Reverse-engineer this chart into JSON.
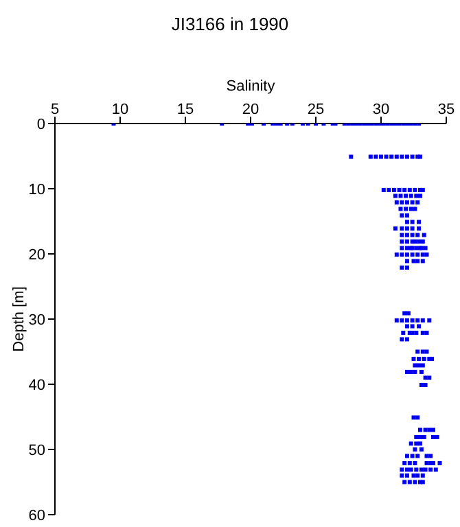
{
  "chart_data": {
    "type": "scatter",
    "title": "JI3166 in 1990",
    "xlabel": "Salinity",
    "ylabel": "Depth [m]",
    "xlim": [
      5,
      35
    ],
    "xticks": [
      5,
      10,
      15,
      20,
      25,
      30,
      35
    ],
    "ylim": [
      60,
      0
    ],
    "yticks": [
      0,
      10,
      20,
      30,
      40,
      50,
      60
    ],
    "grid": false,
    "legend": false,
    "marker": "square",
    "series": [
      {
        "color": "#0000ee",
        "x": [
          9.5,
          17.8,
          19.8,
          20.1,
          21,
          21.7,
          22,
          22.3,
          22.8,
          23.2,
          24,
          24.4,
          25,
          25.6,
          26.3,
          26.5,
          27.2,
          27.5,
          27.8,
          28.1,
          28.4,
          28.7,
          29,
          29.3,
          29.6,
          29.9,
          30.2,
          30.5,
          30.8,
          31.1,
          31.4,
          31.7,
          32,
          32.3,
          32.6,
          32.9,
          27.7,
          29.2,
          29.6,
          30,
          30.4,
          30.8,
          31.2,
          31.6,
          32,
          32.4,
          32.8,
          33,
          30.2,
          30.6,
          31,
          31.4,
          31.8,
          32.2,
          32.6,
          33,
          33.2,
          31.1,
          31.5,
          31.9,
          32.3,
          32.7,
          33,
          31.2,
          31.6,
          32,
          32.4,
          32.8,
          31.5,
          31.9,
          32.3,
          32.6,
          31.6,
          32,
          32,
          32.4,
          32.9,
          31.1,
          31.6,
          32,
          32.4,
          32.9,
          31.6,
          32,
          32.4,
          32.8,
          33.3,
          31.6,
          32,
          32.4,
          32.6,
          32.9,
          33.2,
          31.6,
          32,
          32.3,
          32.4,
          32.7,
          33,
          33.1,
          33.4,
          31.2,
          31.6,
          32,
          32.4,
          32.8,
          33.2,
          33.5,
          32,
          32.5,
          32.8,
          33.2,
          31.6,
          32,
          31.8,
          32.1,
          31.2,
          31.6,
          32,
          32.4,
          32.8,
          33.2,
          33.7,
          32,
          32.4,
          32.9,
          31.7,
          32.2,
          32.4,
          32.7,
          33.2,
          33.5,
          31.6,
          32,
          32.8,
          33.2,
          33.5,
          32.5,
          32.9,
          33.3,
          33.7,
          33.9,
          32.6,
          32.9,
          33.2,
          32,
          32.3,
          32.6,
          33.1,
          33.4,
          33.7,
          33.1,
          33.4,
          32.5,
          32.8,
          33,
          33.4,
          33.7,
          34,
          32.7,
          33,
          33.3,
          34,
          34.3,
          32.3,
          32.7,
          33,
          32.6,
          33.1,
          32,
          32.4,
          32.8,
          33.5,
          33.8,
          31.8,
          32.2,
          32.6,
          33.5,
          33.8,
          34,
          34.5,
          31.6,
          32,
          32.3,
          32.7,
          33.1,
          33.4,
          33.8,
          34.2,
          31.6,
          32,
          32.5,
          32.8,
          33.2,
          31.8,
          32.2,
          32.6,
          33,
          33.2
        ],
        "values": [
          0,
          0,
          0,
          0,
          0,
          0,
          0,
          0,
          0,
          0,
          0,
          0,
          0,
          0,
          0,
          0,
          0,
          0,
          0,
          0,
          0,
          0,
          0,
          0,
          0,
          0,
          0,
          0,
          0,
          0,
          0,
          0,
          0,
          0,
          0,
          0,
          5.1,
          5.1,
          5.1,
          5.1,
          5.1,
          5.1,
          5.1,
          5.1,
          5.1,
          5.1,
          5.1,
          5.1,
          10.2,
          10.2,
          10.2,
          10.2,
          10.2,
          10.2,
          10.2,
          10.2,
          10.2,
          11.1,
          11.1,
          11.1,
          11.1,
          11.1,
          11.1,
          12.1,
          12.1,
          12.1,
          12.1,
          12.1,
          13.1,
          13.1,
          13.1,
          13.1,
          14.1,
          14.1,
          15.1,
          15.1,
          15.1,
          16.1,
          16.1,
          16.1,
          16.1,
          16.1,
          17.1,
          17.1,
          17.1,
          17.1,
          17.1,
          18.1,
          18.1,
          18.1,
          18.1,
          18.1,
          18.1,
          19.1,
          19.1,
          19.1,
          19.1,
          19.1,
          19.1,
          19.1,
          19.1,
          20.1,
          20.1,
          20.1,
          20.1,
          20.1,
          20.1,
          20.1,
          21.1,
          21.1,
          21.1,
          21.1,
          22.1,
          22.1,
          29.1,
          29.1,
          30.2,
          30.2,
          30.2,
          30.2,
          30.2,
          30.2,
          30.2,
          31.1,
          31.1,
          31.1,
          32.1,
          32.1,
          32.1,
          32.1,
          32.1,
          32.1,
          33.1,
          33.1,
          35,
          35,
          35,
          36.1,
          36.1,
          36.1,
          36.1,
          36.1,
          37.1,
          37.1,
          37.1,
          38.1,
          38.1,
          38.1,
          38.1,
          39,
          39,
          40.1,
          40.1,
          45.1,
          45.1,
          47,
          47,
          47,
          47,
          48.1,
          48.1,
          48.1,
          48.1,
          48.1,
          49.1,
          49.1,
          49.1,
          50,
          50,
          51,
          51,
          51,
          51,
          51,
          52.1,
          52.1,
          52.1,
          52.1,
          52.1,
          52.1,
          52.1,
          53.1,
          53.1,
          53.1,
          53.1,
          53.1,
          53.1,
          53.1,
          53.1,
          54,
          54,
          54,
          54,
          54,
          55,
          55,
          55,
          55,
          55
        ]
      }
    ]
  }
}
